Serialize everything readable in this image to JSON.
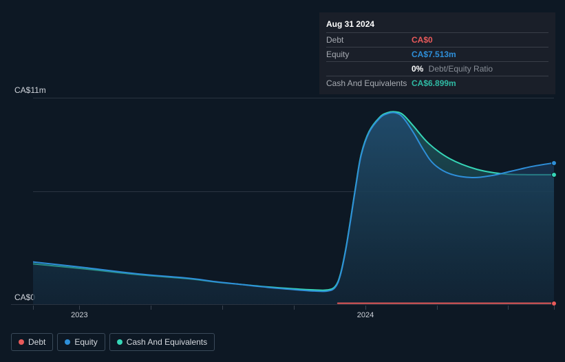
{
  "tooltip": {
    "date": "Aug 31 2024",
    "rows": [
      {
        "label": "Debt",
        "value": "CA$0",
        "color": "#e85a5a"
      },
      {
        "label": "Equity",
        "value": "CA$7.513m",
        "color": "#2e8fd9"
      },
      {
        "label": "",
        "value": "0%",
        "sub": "Debt/Equity Ratio",
        "color": "#ffffff"
      },
      {
        "label": "Cash And Equivalents",
        "value": "CA$6.899m",
        "color": "#2fb9a3"
      }
    ]
  },
  "chart": {
    "type": "area",
    "background_color": "#0d1824",
    "grid_color": "#2a3441",
    "y_top_label": "CA$11m",
    "y_bot_label": "CA$0",
    "ylim": [
      0,
      11
    ],
    "x_labels": [
      "2023",
      "2024"
    ],
    "x_positions_pct": [
      8.9,
      63.8
    ],
    "x_minor_ticks_pct": [
      0,
      8.9,
      22.6,
      36.3,
      50.0,
      63.8,
      77.5,
      91.2,
      100
    ],
    "grid_rows_pct": [
      0,
      45.3
    ],
    "series": {
      "cash": {
        "color": "#36d6b7",
        "fill_top": "rgba(32,90,95,0.85)",
        "fill_bot": "rgba(18,40,55,0.6)",
        "points": [
          [
            0,
            2.15
          ],
          [
            10,
            1.88
          ],
          [
            20,
            1.58
          ],
          [
            30,
            1.35
          ],
          [
            35,
            1.18
          ],
          [
            40,
            1.05
          ],
          [
            45,
            0.92
          ],
          [
            50,
            0.82
          ],
          [
            54,
            0.76
          ],
          [
            56.5,
            0.76
          ],
          [
            58,
            0.95
          ],
          [
            59,
            1.6
          ],
          [
            60,
            2.9
          ],
          [
            61,
            4.6
          ],
          [
            62,
            6.4
          ],
          [
            63,
            8.0
          ],
          [
            64.5,
            9.2
          ],
          [
            66.5,
            9.95
          ],
          [
            68,
            10.2
          ],
          [
            69.5,
            10.25
          ],
          [
            71,
            10.1
          ],
          [
            73,
            9.5
          ],
          [
            76,
            8.55
          ],
          [
            80,
            7.75
          ],
          [
            85,
            7.2
          ],
          [
            90,
            6.95
          ],
          [
            95,
            6.9
          ],
          [
            100,
            6.9
          ]
        ],
        "end_dot_y": 6.9
      },
      "equity": {
        "color": "#2e8fd9",
        "fill_top": "rgba(33,72,115,0.7)",
        "fill_bot": "rgba(18,37,58,0.35)",
        "points": [
          [
            0,
            2.25
          ],
          [
            10,
            1.95
          ],
          [
            20,
            1.62
          ],
          [
            30,
            1.38
          ],
          [
            35,
            1.2
          ],
          [
            40,
            1.05
          ],
          [
            45,
            0.9
          ],
          [
            50,
            0.78
          ],
          [
            54,
            0.7
          ],
          [
            56.5,
            0.7
          ],
          [
            58,
            0.9
          ],
          [
            59,
            1.55
          ],
          [
            60,
            2.85
          ],
          [
            61,
            4.55
          ],
          [
            62,
            6.35
          ],
          [
            63,
            7.95
          ],
          [
            64.5,
            9.15
          ],
          [
            66.5,
            9.9
          ],
          [
            68,
            10.15
          ],
          [
            69.5,
            10.2
          ],
          [
            71,
            9.95
          ],
          [
            73,
            9.15
          ],
          [
            75,
            8.2
          ],
          [
            77,
            7.45
          ],
          [
            80,
            6.95
          ],
          [
            84,
            6.75
          ],
          [
            88,
            6.85
          ],
          [
            92,
            7.1
          ],
          [
            96,
            7.35
          ],
          [
            100,
            7.53
          ]
        ],
        "end_dot_y": 7.53
      },
      "debt": {
        "color": "#e85a5a",
        "points": [
          [
            58.5,
            0.05
          ],
          [
            100,
            0.05
          ]
        ],
        "end_dot_y": 0.05
      }
    }
  },
  "legend": {
    "items": [
      {
        "label": "Debt",
        "color": "#e85a5a"
      },
      {
        "label": "Equity",
        "color": "#2e8fd9"
      },
      {
        "label": "Cash And Equivalents",
        "color": "#36d6b7"
      }
    ]
  },
  "colors": {
    "text_muted": "#a8acb3",
    "border": "#3a3f49"
  }
}
